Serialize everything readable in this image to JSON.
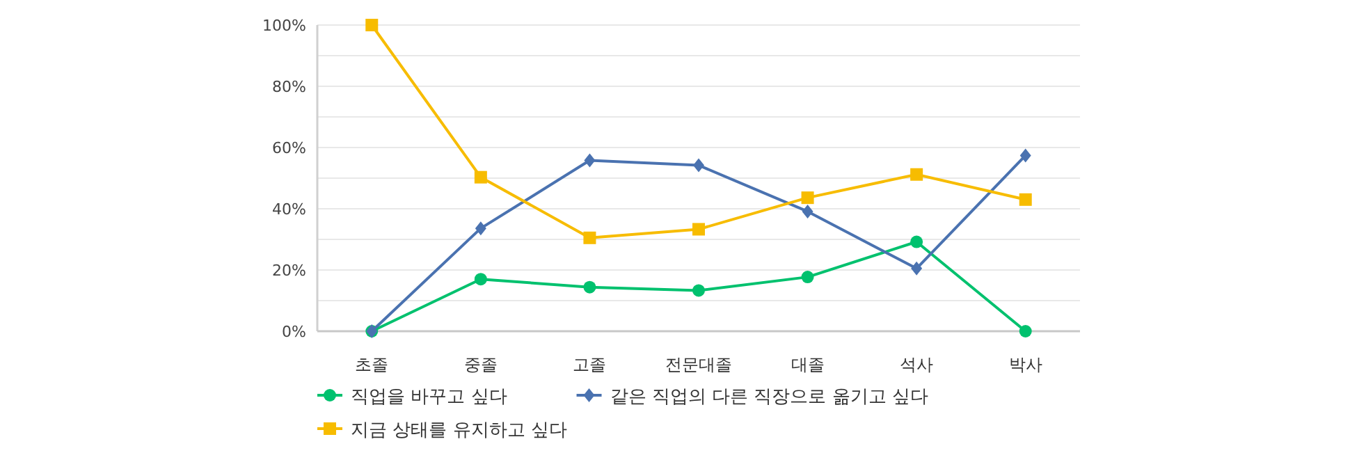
{
  "chart_data": {
    "type": "line",
    "categories": [
      "초졸",
      "중졸",
      "고졸",
      "전문대졸",
      "대졸",
      "석사",
      "박사"
    ],
    "series": [
      {
        "name": "직업을 바꾸고 싶다",
        "color": "#00c16e",
        "marker": "circle",
        "values": [
          0,
          17.0,
          14.4,
          13.3,
          17.7,
          29.2,
          0
        ]
      },
      {
        "name": "같은 직업의 다른 직장으로 옮기고 싶다",
        "color": "#4a72b0",
        "marker": "diamond",
        "values": [
          0,
          33.6,
          55.8,
          54.2,
          39.1,
          20.5,
          57.4
        ]
      },
      {
        "name": "지금 상태를 유지하고 싶다",
        "color": "#f7bc00",
        "marker": "square",
        "values": [
          100,
          50.3,
          30.5,
          33.3,
          43.6,
          51.2,
          43.0
        ]
      }
    ],
    "ylim": [
      0,
      100
    ],
    "yticks": [
      {
        "value": 0,
        "label": "0%"
      },
      {
        "value": 10,
        "label": null
      },
      {
        "value": 20,
        "label": "20%"
      },
      {
        "value": 30,
        "label": null
      },
      {
        "value": 40,
        "label": "40%"
      },
      {
        "value": 50,
        "label": null
      },
      {
        "value": 60,
        "label": "60%"
      },
      {
        "value": 70,
        "label": null
      },
      {
        "value": 80,
        "label": "80%"
      },
      {
        "value": 90,
        "label": null
      },
      {
        "value": 100,
        "label": "100%"
      }
    ],
    "grid": "y",
    "legend": "bottom",
    "line_style": "solid"
  }
}
